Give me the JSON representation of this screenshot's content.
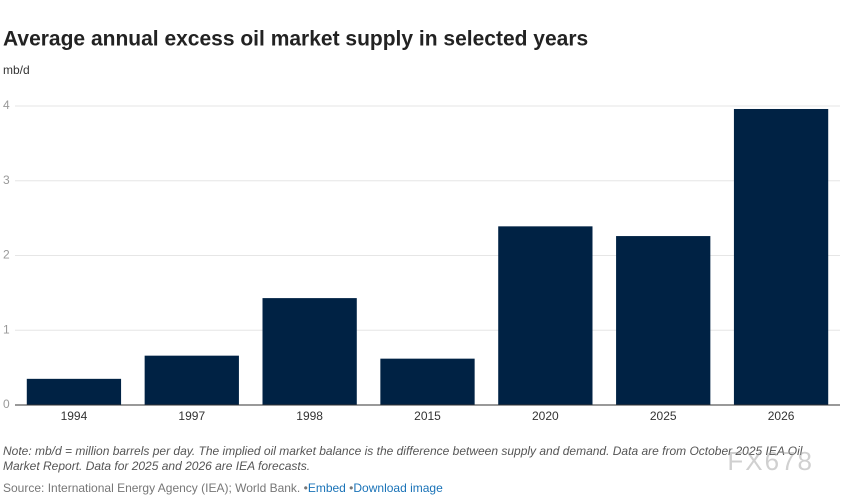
{
  "chart_data": {
    "type": "bar",
    "title": "Average annual excess oil market supply in selected years",
    "y_label": "mb/d",
    "categories": [
      "1994",
      "1997",
      "1998",
      "2015",
      "2020",
      "2025",
      "2026"
    ],
    "values": [
      0.35,
      0.66,
      1.43,
      0.62,
      2.39,
      2.26,
      3.96
    ],
    "color": "#002244",
    "ylim": [
      0,
      4
    ],
    "yticks": [
      0,
      1,
      2,
      3,
      4
    ],
    "grid": true,
    "note": "Note: mb/d = million barrels per day. The implied oil market balance is the difference between supply and demand. Data are from October 2025 IEA Oil Market Report. Data for 2025 and 2026 are IEA forecasts.",
    "source": "Source: International Energy Agency (IEA); World Bank.",
    "links": [
      "Embed",
      "Download image"
    ],
    "watermark": "FX678"
  }
}
